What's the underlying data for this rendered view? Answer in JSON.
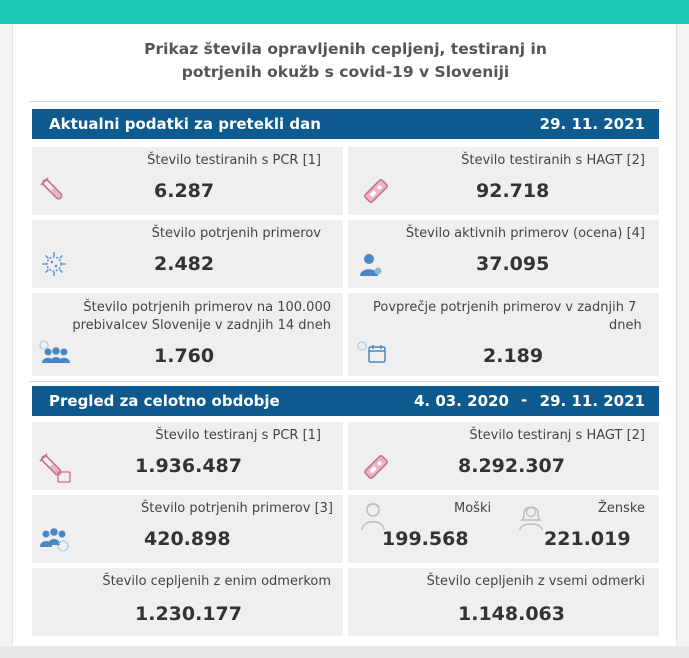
{
  "title": {
    "line1": "Prikaz števila opravljenih cepljenj, testiranj in",
    "line2": "potrjenih okužb s covid-19 v Sloveniji"
  },
  "section_daily": {
    "label": "Aktualni podatki za pretekli dan",
    "date": "29. 11. 2021",
    "cards": [
      {
        "label": "Število testiranih s PCR [1]",
        "value": "6.287",
        "icon": "test-tube-icon"
      },
      {
        "label": "Število testiranih s HAGT [2]",
        "value": "92.718",
        "icon": "rapid-test-icon"
      },
      {
        "label": "Število potrjenih primerov",
        "value": "2.482",
        "icon": "virus-icon"
      },
      {
        "label": "Število aktivnih primerov (ocena) [4]",
        "value": "37.095",
        "icon": "person-icon"
      },
      {
        "label_line1": "Število potrjenih primerov na 100.000",
        "label_line2": "prebivalcev Slovenije v zadnjih 14 dneh",
        "value": "1.760",
        "icon": "group-virus-icon"
      },
      {
        "label_line1": "Povprečje potrjenih primerov v zadnjih 7",
        "label_line2": "dneh",
        "value": "2.189",
        "icon": "calendar-virus-icon"
      }
    ]
  },
  "section_total": {
    "label": "Pregled za celotno obdobje",
    "date_from": "4. 03. 2020",
    "dash": "-",
    "date_to": "29. 11. 2021",
    "cards": [
      {
        "label": "Število testiranj s PCR [1]",
        "value": "1.936.487",
        "icon": "test-tube-icon"
      },
      {
        "label": "Število testiranj s HAGT [2]",
        "value": "8.292.307",
        "icon": "rapid-test-icon"
      },
      {
        "label": "Število potrjenih primerov [3]",
        "value": "420.898",
        "icon": "group-virus-icon"
      },
      {
        "male_label": "Moški",
        "male_value": "199.568",
        "female_label": "Ženske",
        "female_value": "221.019"
      },
      {
        "label": "Število cepljenih z enim odmerkom",
        "value": "1.230.177"
      },
      {
        "label": "Število cepljenih z vsemi odmerki",
        "value": "1.148.063"
      }
    ]
  },
  "colors": {
    "topbar": "#1dc8b8",
    "section_bar": "#0d5a8f",
    "card_bg": "#efefef",
    "icon_pink": "#c96b8a",
    "icon_blue": "#5b8fc9"
  }
}
